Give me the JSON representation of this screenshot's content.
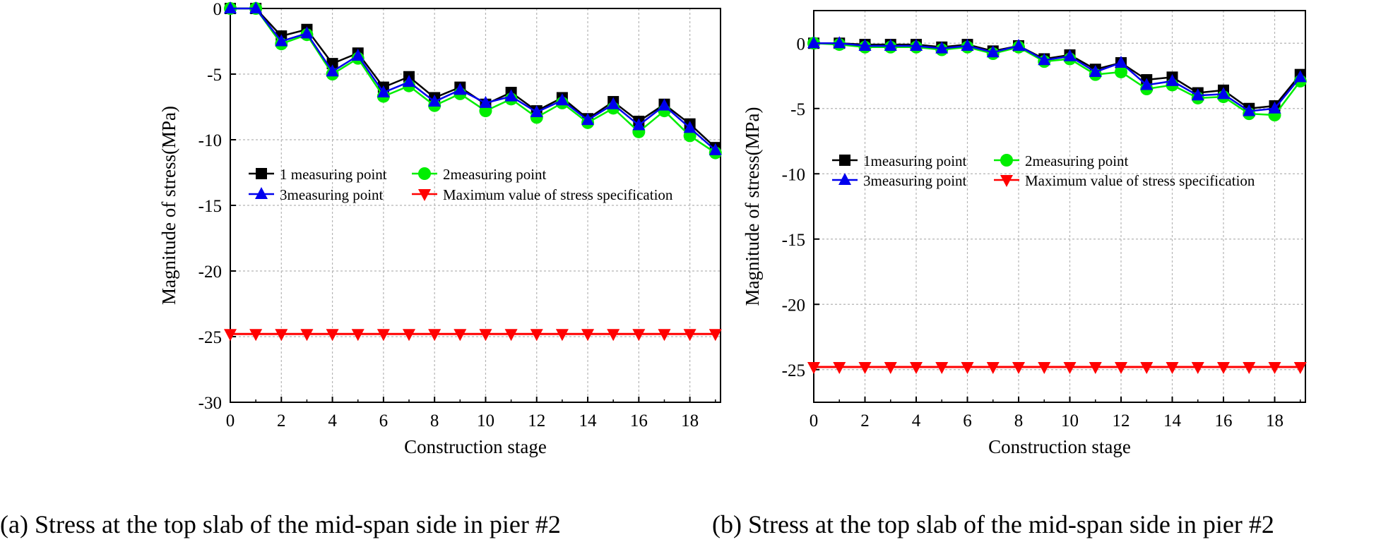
{
  "colors": {
    "series1": "#000000",
    "series2": "#00ee00",
    "series3": "#0000ee",
    "limit": "#ff0000",
    "grid": "#b4b4b4"
  },
  "chart_data": [
    {
      "type": "line",
      "title": "",
      "caption": "(a) Stress at the top slab of the mid-span side in pier #2",
      "xlabel": "Construction stage",
      "ylabel": "Magnitude of stress(MPa)",
      "xlim": [
        0,
        19.2
      ],
      "ylim": [
        -30,
        0
      ],
      "xticks": [
        0,
        2,
        4,
        6,
        8,
        10,
        12,
        14,
        16,
        18
      ],
      "yticks": [
        0,
        -5,
        -10,
        -15,
        -20,
        -25,
        -30
      ],
      "grid": true,
      "legend_position": "middle-right",
      "x": [
        0,
        1,
        2,
        3,
        4,
        5,
        6,
        7,
        8,
        9,
        10,
        11,
        12,
        13,
        14,
        15,
        16,
        17,
        18,
        19
      ],
      "series": [
        {
          "name": "1 measuring point",
          "marker": "square",
          "values": [
            0,
            0,
            -2.1,
            -1.6,
            -4.2,
            -3.4,
            -6.0,
            -5.2,
            -6.8,
            -6.0,
            -7.3,
            -6.4,
            -7.8,
            -6.8,
            -8.4,
            -7.1,
            -8.6,
            -7.3,
            -8.8,
            -10.6
          ]
        },
        {
          "name": "2measuring point",
          "marker": "circle",
          "values": [
            0,
            0,
            -2.7,
            -2.0,
            -5.0,
            -3.8,
            -6.7,
            -5.9,
            -7.4,
            -6.5,
            -7.8,
            -6.9,
            -8.3,
            -7.2,
            -8.7,
            -7.6,
            -9.4,
            -7.8,
            -9.7,
            -11.0
          ]
        },
        {
          "name": "3measuring point",
          "marker": "triangle-up",
          "values": [
            0,
            0,
            -2.5,
            -1.9,
            -4.8,
            -3.6,
            -6.4,
            -5.6,
            -7.1,
            -6.2,
            -7.2,
            -6.7,
            -7.9,
            -7.0,
            -8.5,
            -7.3,
            -8.9,
            -7.4,
            -9.1,
            -10.8
          ]
        },
        {
          "name": "Maximum value of stress specification",
          "marker": "triangle-down",
          "values": [
            -24.8,
            -24.8,
            -24.8,
            -24.8,
            -24.8,
            -24.8,
            -24.8,
            -24.8,
            -24.8,
            -24.8,
            -24.8,
            -24.8,
            -24.8,
            -24.8,
            -24.8,
            -24.8,
            -24.8,
            -24.8,
            -24.8,
            -24.8
          ]
        }
      ]
    },
    {
      "type": "line",
      "title": "",
      "caption": "(b) Stress at the top slab of the mid-span side in pier #2",
      "xlabel": "Construction stage",
      "ylabel": "Magnitude of stress(MPa)",
      "xlim": [
        0,
        19.2
      ],
      "ylim": [
        -27.5,
        2.5
      ],
      "xticks": [
        0,
        2,
        4,
        6,
        8,
        10,
        12,
        14,
        16,
        18
      ],
      "yticks": [
        0,
        -5,
        -10,
        -15,
        -20,
        -25
      ],
      "grid": true,
      "legend_position": "upper-middle",
      "x": [
        0,
        1,
        2,
        3,
        4,
        5,
        6,
        7,
        8,
        9,
        10,
        11,
        12,
        13,
        14,
        15,
        16,
        17,
        18,
        19
      ],
      "series": [
        {
          "name": "1measuring point",
          "marker": "square",
          "values": [
            0,
            0,
            -0.1,
            -0.1,
            -0.1,
            -0.3,
            -0.1,
            -0.6,
            -0.2,
            -1.2,
            -0.9,
            -2.0,
            -1.5,
            -2.8,
            -2.6,
            -3.8,
            -3.6,
            -5.0,
            -4.8,
            -2.4
          ]
        },
        {
          "name": "2measuring point",
          "marker": "circle",
          "values": [
            0,
            -0.1,
            -0.3,
            -0.3,
            -0.3,
            -0.5,
            -0.3,
            -0.8,
            -0.3,
            -1.4,
            -1.2,
            -2.4,
            -2.2,
            -3.5,
            -3.2,
            -4.2,
            -4.1,
            -5.4,
            -5.5,
            -2.9
          ]
        },
        {
          "name": "3measuring point",
          "marker": "triangle-up",
          "values": [
            0,
            0,
            -0.2,
            -0.2,
            -0.2,
            -0.4,
            -0.2,
            -0.7,
            -0.2,
            -1.3,
            -1.0,
            -2.2,
            -1.5,
            -3.2,
            -2.9,
            -4.0,
            -3.9,
            -5.2,
            -5.0,
            -2.6
          ]
        },
        {
          "name": "Maximum value of stress specification",
          "marker": "triangle-down",
          "values": [
            -24.8,
            -24.8,
            -24.8,
            -24.8,
            -24.8,
            -24.8,
            -24.8,
            -24.8,
            -24.8,
            -24.8,
            -24.8,
            -24.8,
            -24.8,
            -24.8,
            -24.8,
            -24.8,
            -24.8,
            -24.8,
            -24.8,
            -24.8
          ]
        }
      ]
    }
  ]
}
